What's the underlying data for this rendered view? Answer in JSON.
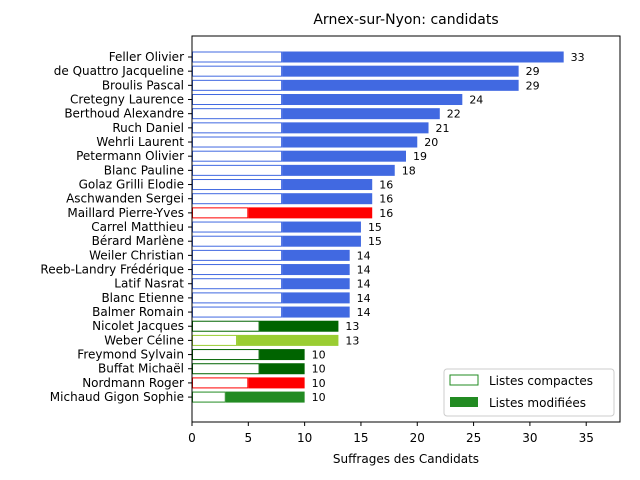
{
  "chart_data": {
    "type": "bar",
    "orientation": "horizontal",
    "title": "Arnex-sur-Nyon: candidats",
    "xlabel": "Suffrages des Candidats",
    "ylabel": "",
    "xlim": [
      0,
      38
    ],
    "xticks": [
      0,
      5,
      10,
      15,
      20,
      25,
      30,
      35
    ],
    "grid": false,
    "legend_position": "bottom-right",
    "series": [
      {
        "name": "Listes compactes",
        "style": "outline"
      },
      {
        "name": "Listes modifiées",
        "style": "filled",
        "color": "#228b22"
      }
    ],
    "candidates": [
      {
        "name": "Feller Olivier",
        "compact": 8,
        "total": 33,
        "color": "#4169e1"
      },
      {
        "name": "de Quattro Jacqueline",
        "compact": 8,
        "total": 29,
        "color": "#4169e1"
      },
      {
        "name": "Broulis Pascal",
        "compact": 8,
        "total": 29,
        "color": "#4169e1"
      },
      {
        "name": "Cretegny Laurence",
        "compact": 8,
        "total": 24,
        "color": "#4169e1"
      },
      {
        "name": "Berthoud Alexandre",
        "compact": 8,
        "total": 22,
        "color": "#4169e1"
      },
      {
        "name": "Ruch Daniel",
        "compact": 8,
        "total": 21,
        "color": "#4169e1"
      },
      {
        "name": "Wehrli Laurent",
        "compact": 8,
        "total": 20,
        "color": "#4169e1"
      },
      {
        "name": "Petermann Olivier",
        "compact": 8,
        "total": 19,
        "color": "#4169e1"
      },
      {
        "name": "Blanc Pauline",
        "compact": 8,
        "total": 18,
        "color": "#4169e1"
      },
      {
        "name": "Golaz Grilli Elodie",
        "compact": 8,
        "total": 16,
        "color": "#4169e1"
      },
      {
        "name": "Aschwanden Sergei",
        "compact": 8,
        "total": 16,
        "color": "#4169e1"
      },
      {
        "name": "Maillard Pierre-Yves",
        "compact": 5,
        "total": 16,
        "color": "#ff0000"
      },
      {
        "name": "Carrel Matthieu",
        "compact": 8,
        "total": 15,
        "color": "#4169e1"
      },
      {
        "name": "Bérard Marlène",
        "compact": 8,
        "total": 15,
        "color": "#4169e1"
      },
      {
        "name": "Weiler Christian",
        "compact": 8,
        "total": 14,
        "color": "#4169e1"
      },
      {
        "name": "Reeb-Landry Frédérique",
        "compact": 8,
        "total": 14,
        "color": "#4169e1"
      },
      {
        "name": "Latif Nasrat",
        "compact": 8,
        "total": 14,
        "color": "#4169e1"
      },
      {
        "name": "Blanc Etienne",
        "compact": 8,
        "total": 14,
        "color": "#4169e1"
      },
      {
        "name": "Balmer Romain",
        "compact": 8,
        "total": 14,
        "color": "#4169e1"
      },
      {
        "name": "Nicolet Jacques",
        "compact": 6,
        "total": 13,
        "color": "#006400"
      },
      {
        "name": "Weber Céline",
        "compact": 4,
        "total": 13,
        "color": "#9acd32"
      },
      {
        "name": "Freymond Sylvain",
        "compact": 6,
        "total": 10,
        "color": "#006400"
      },
      {
        "name": "Buffat Michaël",
        "compact": 6,
        "total": 10,
        "color": "#006400"
      },
      {
        "name": "Nordmann Roger",
        "compact": 5,
        "total": 10,
        "color": "#ff0000"
      },
      {
        "name": "Michaud Gigon Sophie",
        "compact": 3,
        "total": 10,
        "color": "#228b22"
      }
    ]
  }
}
